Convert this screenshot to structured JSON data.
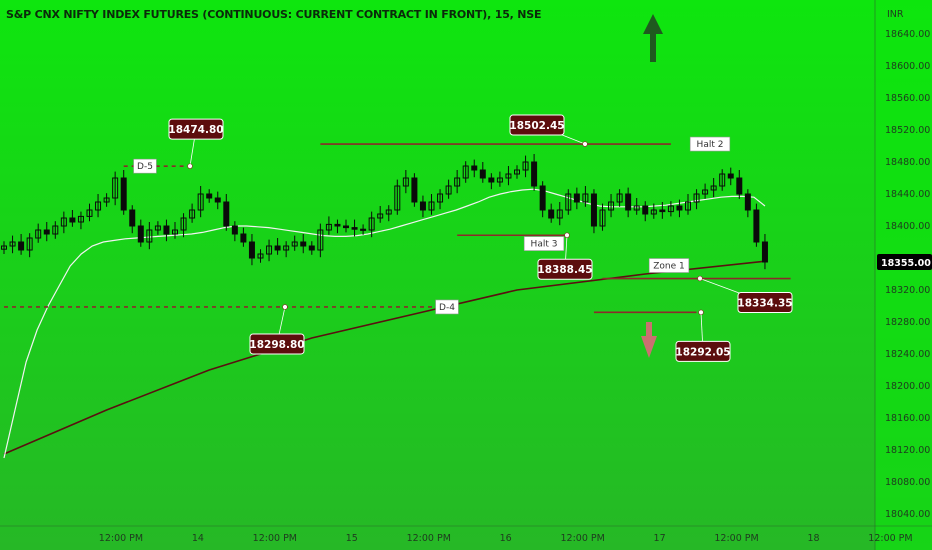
{
  "header": {
    "title": "S&P CNX NIFTY INDEX FUTURES (CONTINUOUS: CURRENT CONTRACT IN FRONT), 15, NSE"
  },
  "colors": {
    "bg_top": "#0ee60e",
    "bg_bottom": "#26b826",
    "candle": "#0a0a0a",
    "fast_ma": "#f2f2f2",
    "slow_ma": "#5a1010",
    "level_line": "#8b2a2a",
    "tag_fill": "#5c0d0d",
    "up_arrow": "#1f5a1f",
    "down_arrow": "#c97070"
  },
  "chart_data": {
    "type": "line",
    "title": "S&P CNX NIFTY INDEX FUTURES (CONTINUOUS: CURRENT CONTRACT IN FRONT), 15, NSE",
    "xlabel": "",
    "ylabel": "INR",
    "ylim": [
      18030,
      18665
    ],
    "y_ticks": [
      18640,
      18600,
      18560,
      18520,
      18480,
      18440,
      18400,
      18355,
      18320,
      18280,
      18240,
      18200,
      18160,
      18120,
      18080,
      18040
    ],
    "y_tick_labels": [
      "18640.00",
      "18600.00",
      "18560.00",
      "18520.00",
      "18480.00",
      "18440.00",
      "18400.00",
      "18355.00",
      "18320.00",
      "18280.00",
      "18240.00",
      "18200.00",
      "18160.00",
      "18120.00",
      "18080.00",
      "18040.00"
    ],
    "x_tick_labels": [
      "12:00 PM",
      "14",
      "12:00 PM",
      "15",
      "12:00 PM",
      "16",
      "12:00 PM",
      "17",
      "12:00 PM",
      "18",
      "12:00 PM"
    ],
    "x_tick_bars": [
      9,
      18,
      27,
      36,
      45,
      54,
      63,
      72,
      81,
      90,
      99
    ],
    "last_price": 18355.0,
    "last_price_label": "18355.00",
    "series": [
      {
        "values": [
          18375,
          18380,
          18370,
          18385,
          18395,
          18390,
          18400,
          18410,
          18405,
          18412,
          18420,
          18430,
          18435,
          18460,
          18420,
          18400,
          18380,
          18395,
          18400,
          18390,
          18395,
          18410,
          18420,
          18440,
          18435,
          18430,
          18400,
          18390,
          18380,
          18360,
          18365,
          18375,
          18370,
          18375,
          18380,
          18375,
          18370,
          18395,
          18402,
          18400,
          18398,
          18396,
          18395,
          18410,
          18415,
          18420,
          18450,
          18460,
          18430,
          18420,
          18430,
          18440,
          18450,
          18460,
          18475,
          18470,
          18460,
          18455,
          18460,
          18465,
          18470,
          18480,
          18450,
          18420,
          18410,
          18420,
          18440,
          18430,
          18440,
          18400,
          18420,
          18430,
          18440,
          18420,
          18425,
          18415,
          18420,
          18418,
          18425,
          18420,
          18430,
          18440,
          18445,
          18450,
          18465,
          18460,
          18440,
          18420,
          18380,
          18355
        ]
      }
    ],
    "overlays": {
      "fast_ma": [
        18110,
        18170,
        18230,
        18270,
        18300,
        18325,
        18350,
        18365,
        18375,
        18380,
        18382,
        18384,
        18385,
        18386,
        18387,
        18388,
        18389,
        18390,
        18392,
        18395,
        18398,
        18400,
        18400,
        18399,
        18398,
        18396,
        18394,
        18392,
        18390,
        18388,
        18387,
        18387,
        18388,
        18390,
        18393,
        18396,
        18400,
        18404,
        18408,
        18412,
        18416,
        18420,
        18425,
        18430,
        18436,
        18440,
        18443,
        18445,
        18446,
        18444,
        18440,
        18436,
        18432,
        18428,
        18425,
        18424,
        18424,
        18424,
        18424,
        18425,
        18426,
        18428,
        18430,
        18432,
        18434,
        18436,
        18437,
        18437,
        18436,
        18425
      ],
      "fast_ma_start_bar": 0,
      "slow_ma": [
        18115,
        18170,
        18220,
        18260,
        18290,
        18320,
        18340,
        18356
      ],
      "slow_ma_bars": [
        0,
        12,
        24,
        36,
        48,
        60,
        75,
        89
      ]
    },
    "levels": [
      {
        "label": "18502.45",
        "price": 18502.45,
        "from_bar": 37,
        "to_bar": 78
      },
      {
        "label": "18474.80",
        "price": 18474.8,
        "from_bar": 14,
        "to_bar": 21
      },
      {
        "label": "18388.45",
        "price": 18388.45,
        "from_bar": 53,
        "to_bar": 66
      },
      {
        "label": "18334.35",
        "price": 18334.35,
        "from_bar": 70,
        "to_bar": 92
      },
      {
        "label": "18298.80",
        "price": 18298.8,
        "from_bar": 0,
        "to_bar": 52
      },
      {
        "label": "18292.05",
        "price": 18292.05,
        "from_bar": 69,
        "to_bar": 81
      }
    ],
    "annotations": [
      "D-5",
      "Halt 2",
      "Halt 3",
      "D-4",
      "Zone 1"
    ]
  }
}
